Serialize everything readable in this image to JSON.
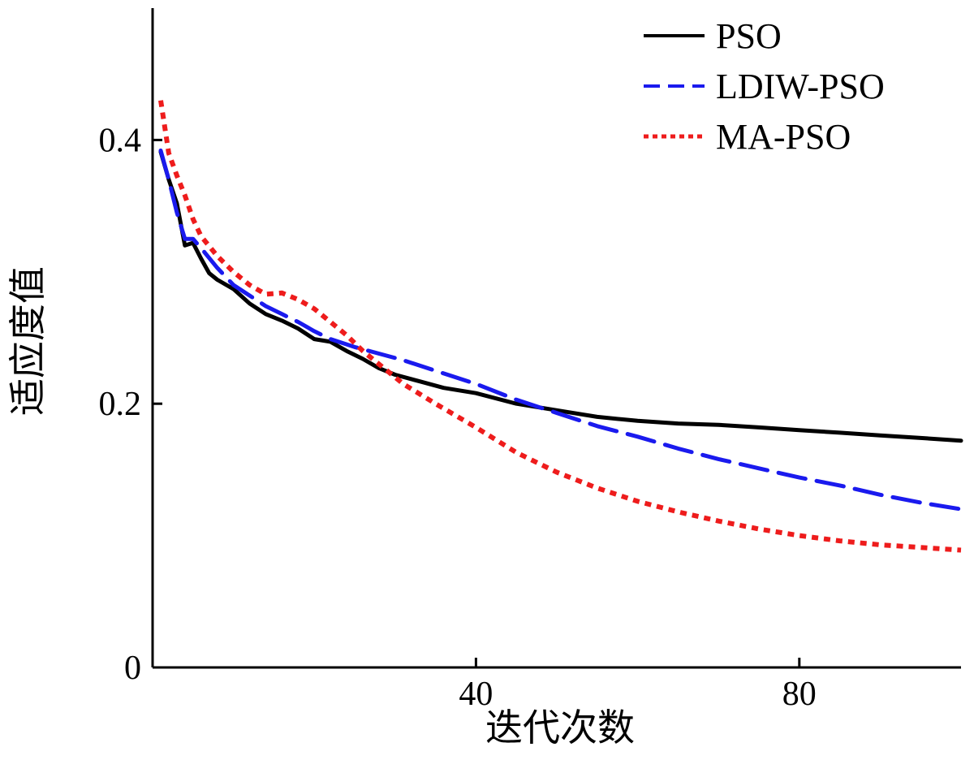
{
  "chart_data": {
    "type": "line",
    "title": "",
    "xlabel": "迭代次数",
    "ylabel": "适应度值",
    "xlim": [
      0,
      100
    ],
    "ylim": [
      0,
      0.5
    ],
    "x_ticks": [
      {
        "value": 40,
        "label": "40"
      },
      {
        "value": 80,
        "label": "80"
      }
    ],
    "y_ticks": [
      {
        "value": 0,
        "label": "0"
      },
      {
        "value": 0.2,
        "label": "0.2"
      },
      {
        "value": 0.4,
        "label": "0.4"
      }
    ],
    "grid": false,
    "legend_position": "top-right",
    "series": [
      {
        "name": "PSO",
        "color": "#000000",
        "dash": "solid",
        "x": [
          1,
          2,
          3,
          4,
          5,
          6,
          7,
          8,
          10,
          12,
          14,
          16,
          18,
          20,
          22,
          24,
          26,
          28,
          30,
          33,
          36,
          40,
          45,
          50,
          55,
          60,
          65,
          70,
          75,
          80,
          85,
          90,
          95,
          100
        ],
        "y": [
          0.391,
          0.37,
          0.352,
          0.32,
          0.322,
          0.31,
          0.299,
          0.294,
          0.287,
          0.276,
          0.268,
          0.263,
          0.257,
          0.249,
          0.247,
          0.24,
          0.234,
          0.227,
          0.222,
          0.217,
          0.212,
          0.208,
          0.2,
          0.195,
          0.19,
          0.187,
          0.185,
          0.184,
          0.182,
          0.18,
          0.178,
          0.176,
          0.174,
          0.172
        ]
      },
      {
        "name": "LDIW-PSO",
        "color": "#1a1aee",
        "dash": "dashed",
        "x": [
          1,
          2,
          3,
          4,
          5,
          6,
          8,
          10,
          12,
          14,
          16,
          18,
          20,
          22,
          25,
          28,
          31,
          35,
          40,
          45,
          50,
          55,
          60,
          65,
          70,
          75,
          80,
          85,
          90,
          95,
          100
        ],
        "y": [
          0.392,
          0.37,
          0.345,
          0.325,
          0.325,
          0.318,
          0.303,
          0.29,
          0.282,
          0.274,
          0.268,
          0.262,
          0.255,
          0.249,
          0.243,
          0.238,
          0.233,
          0.225,
          0.215,
          0.203,
          0.193,
          0.183,
          0.175,
          0.166,
          0.158,
          0.151,
          0.144,
          0.138,
          0.131,
          0.125,
          0.12
        ]
      },
      {
        "name": "MA-PSO",
        "color": "#ee1c1c",
        "dash": "dotted",
        "x": [
          1,
          2,
          3,
          4,
          5,
          6,
          8,
          10,
          12,
          14,
          16,
          18,
          20,
          22,
          24,
          26,
          28,
          31,
          35,
          40,
          45,
          50,
          55,
          60,
          65,
          70,
          75,
          80,
          85,
          90,
          95,
          100
        ],
        "y": [
          0.43,
          0.39,
          0.373,
          0.358,
          0.34,
          0.327,
          0.312,
          0.3,
          0.29,
          0.283,
          0.284,
          0.279,
          0.272,
          0.262,
          0.252,
          0.24,
          0.23,
          0.215,
          0.2,
          0.182,
          0.163,
          0.148,
          0.136,
          0.126,
          0.118,
          0.111,
          0.105,
          0.1,
          0.096,
          0.093,
          0.091,
          0.089
        ]
      }
    ]
  }
}
